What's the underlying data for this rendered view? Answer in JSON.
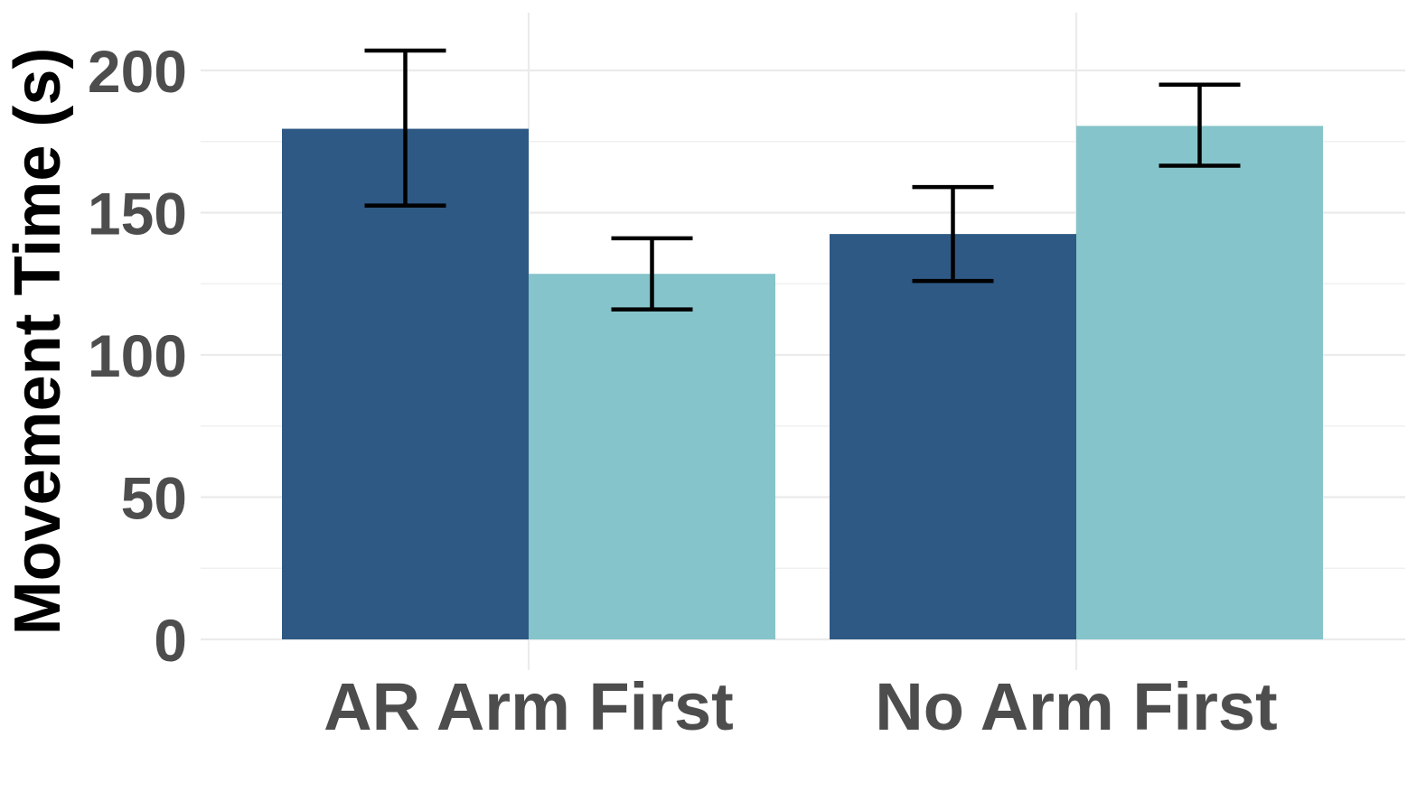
{
  "chart_data": {
    "type": "bar",
    "title": "",
    "xlabel": "",
    "ylabel": "Movement Time (s)",
    "ylim": [
      0,
      210
    ],
    "yticks": [
      "0",
      "50",
      "100",
      "150",
      "200"
    ],
    "categories": [
      "AR Arm First",
      "No Arm First"
    ],
    "series": [
      {
        "color": "#2e5984",
        "values": [
          179.5,
          142.5
        ],
        "error_low": [
          152.5,
          126
        ],
        "error_high": [
          207,
          159
        ]
      },
      {
        "color": "#85c4ca",
        "values": [
          128.5,
          180.5
        ],
        "error_low": [
          116,
          166.5
        ],
        "error_high": [
          141,
          195
        ]
      }
    ],
    "grid": true,
    "legend": "none"
  }
}
